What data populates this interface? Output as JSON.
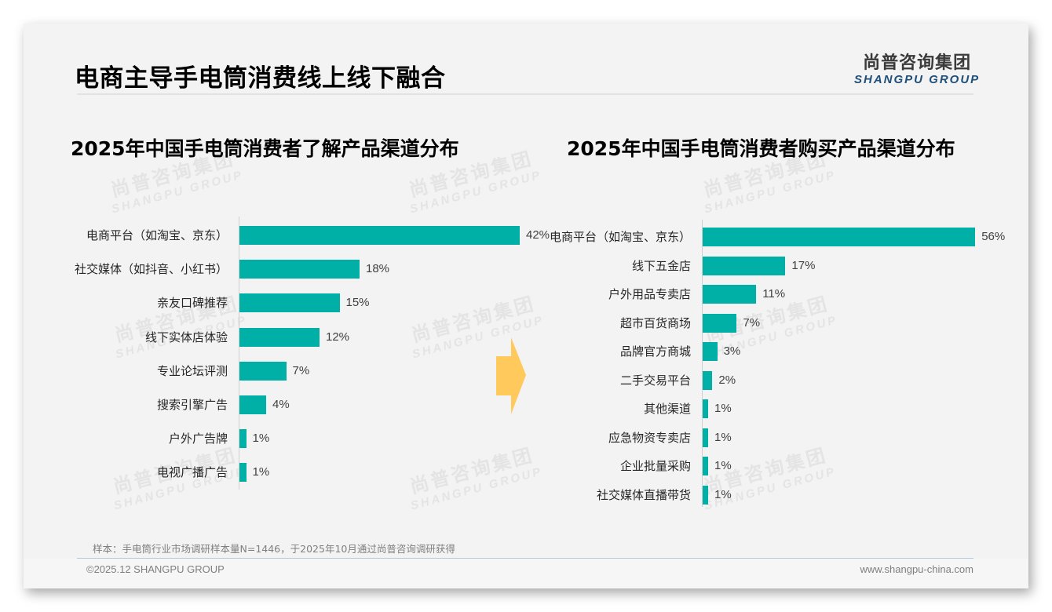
{
  "header": {
    "title": "电商主导手电筒消费线上线下融合",
    "logo_cn": "尚普咨询集团",
    "logo_en": "SHANGPU GROUP"
  },
  "watermark": {
    "cn": "尚普咨询集团",
    "en": "SHANGPU GROUP"
  },
  "colors": {
    "bar": "#00b0a7",
    "arrow": "#ffc95c",
    "logo_en": "#1f4e79"
  },
  "chart_data": [
    {
      "type": "bar",
      "orientation": "horizontal",
      "title": "2025年中国手电筒消费者了解产品渠道分布",
      "categories": [
        "电商平台（如淘宝、京东）",
        "社交媒体（如抖音、小红书）",
        "亲友口碑推荐",
        "线下实体店体验",
        "专业论坛评测",
        "搜索引擎广告",
        "户外广告牌",
        "电视广播广告"
      ],
      "values": [
        42,
        18,
        15,
        12,
        7,
        4,
        1,
        1
      ],
      "labels": [
        "42%",
        "18%",
        "15%",
        "12%",
        "7%",
        "4%",
        "1%",
        "1%"
      ],
      "xlabel": "",
      "ylabel": "",
      "grid": false,
      "unit": "%"
    },
    {
      "type": "bar",
      "orientation": "horizontal",
      "title": "2025年中国手电筒消费者购买产品渠道分布",
      "categories": [
        "电商平台（如淘宝、京东）",
        "线下五金店",
        "户外用品专卖店",
        "超市百货商场",
        "品牌官方商城",
        "二手交易平台",
        "其他渠道",
        "应急物资专卖店",
        "企业批量采购",
        "社交媒体直播带货"
      ],
      "values": [
        56,
        17,
        11,
        7,
        3,
        2,
        1,
        1,
        1,
        1
      ],
      "labels": [
        "56%",
        "17%",
        "11%",
        "7%",
        "3%",
        "2%",
        "1%",
        "1%",
        "1%",
        "1%"
      ],
      "xlabel": "",
      "ylabel": "",
      "grid": false,
      "unit": "%"
    }
  ],
  "footer": {
    "note": "样本：手电筒行业市场调研样本量N=1446，于2025年10月通过尚普咨询调研获得",
    "copyright": "©2025.12 SHANGPU GROUP",
    "website": "www.shangpu-china.com"
  }
}
